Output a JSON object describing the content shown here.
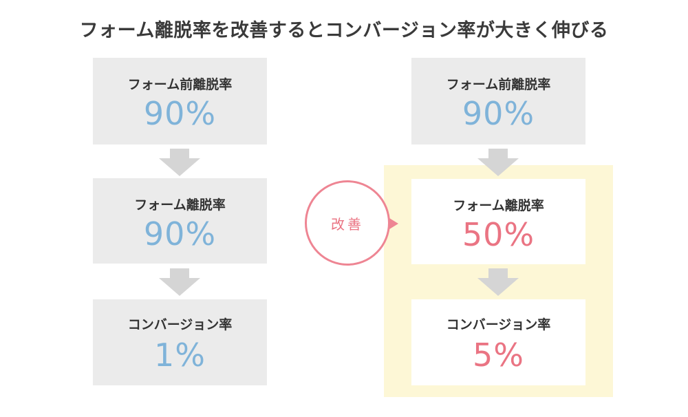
{
  "title": "フォーム離脱率を改善するとコンバージョン率が大きく伸びる",
  "left": {
    "boxes": [
      {
        "label": "フォーム前離脱率",
        "value": "90%"
      },
      {
        "label": "フォーム離脱率",
        "value": "90%"
      },
      {
        "label": "コンバージョン率",
        "value": "1%"
      }
    ]
  },
  "right": {
    "boxes": [
      {
        "label": "フォーム前離脱率",
        "value": "90%"
      },
      {
        "label": "フォーム離脱率",
        "value": "50%"
      },
      {
        "label": "コンバージョン率",
        "value": "5%"
      }
    ]
  },
  "improve_label": "改善",
  "colors": {
    "blue_value": "#7fb3d9",
    "pink_value": "#ea7483",
    "box_gray": "#ebebeb",
    "arrow_gray": "#d5d5d5",
    "highlight": "#fdf7d6",
    "circle_border": "#ee8593"
  }
}
